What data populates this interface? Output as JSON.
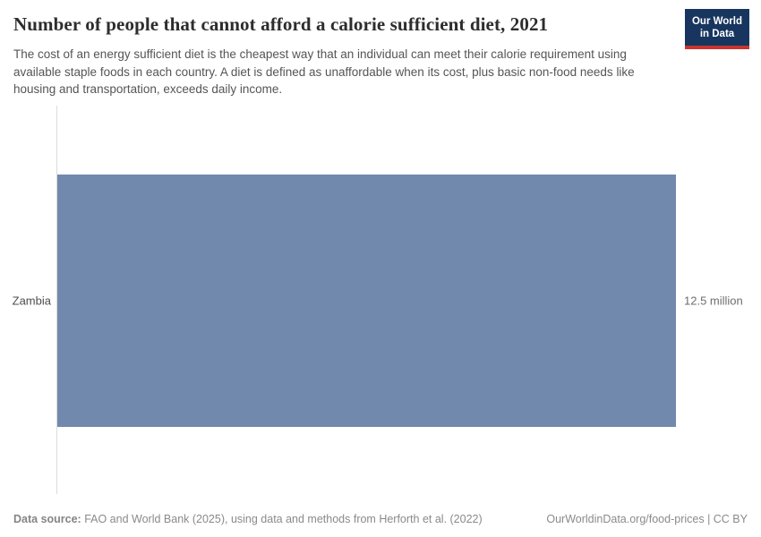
{
  "header": {
    "title": "Number of people that cannot afford a calorie sufficient diet, 2021",
    "subtitle": "The cost of an energy sufficient diet is the cheapest way that an individual can meet their calorie requirement using available staple foods in each country. A diet is defined as unaffordable when its cost, plus basic non-food needs like housing and transportation, exceeds daily income.",
    "logo": {
      "line1": "Our World",
      "line2": "in Data"
    }
  },
  "chart_data": {
    "type": "bar",
    "orientation": "horizontal",
    "title": "Number of people that cannot afford a calorie sufficient diet, 2021",
    "categories": [
      "Zambia"
    ],
    "values": [
      12500000
    ],
    "value_labels": [
      "12.5 million"
    ],
    "xlabel": "",
    "ylabel": "",
    "xlim": [
      0,
      12500000
    ],
    "grid": false,
    "legend": false,
    "bar_color": "#7289ae"
  },
  "labels": {
    "entity": "Zambia",
    "value": "12.5 million"
  },
  "footer": {
    "data_source_label": "Data source:",
    "data_source_text": " FAO and World Bank (2025), using data and methods from Herforth et al. (2022)",
    "link_text": "OurWorldinData.org/food-prices | CC BY"
  },
  "colors": {
    "bar": "#7289ae",
    "logo_background": "#18355f",
    "logo_stripe": "#c9342e",
    "title_text": "#2d2d2d",
    "subtitle_text": "#555555",
    "axis_line": "#dcdcdc"
  }
}
